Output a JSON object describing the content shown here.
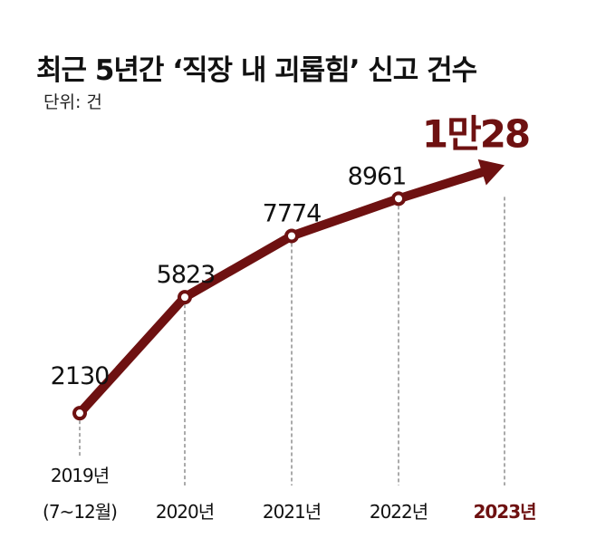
{
  "chart_data": {
    "type": "line",
    "title": "최근 5년간 ‘직장 내 괴롭힘’ 신고 건수",
    "unit_label": "단위: 건",
    "categories": [
      "2019년",
      "2020년",
      "2021년",
      "2022년",
      "2023년"
    ],
    "category_sublabels": [
      "(7~12월)",
      "",
      "",
      "",
      ""
    ],
    "values": [
      2130,
      5823,
      7774,
      8961,
      10028
    ],
    "data_labels": [
      "2130",
      "5823",
      "7774",
      "8961",
      "1만28"
    ],
    "ylim": [
      0,
      12000
    ],
    "grid": false,
    "xlabel": "",
    "ylabel": "",
    "colors": {
      "line": "#6e1111",
      "highlight": "#6e1111",
      "text": "#111111"
    }
  }
}
